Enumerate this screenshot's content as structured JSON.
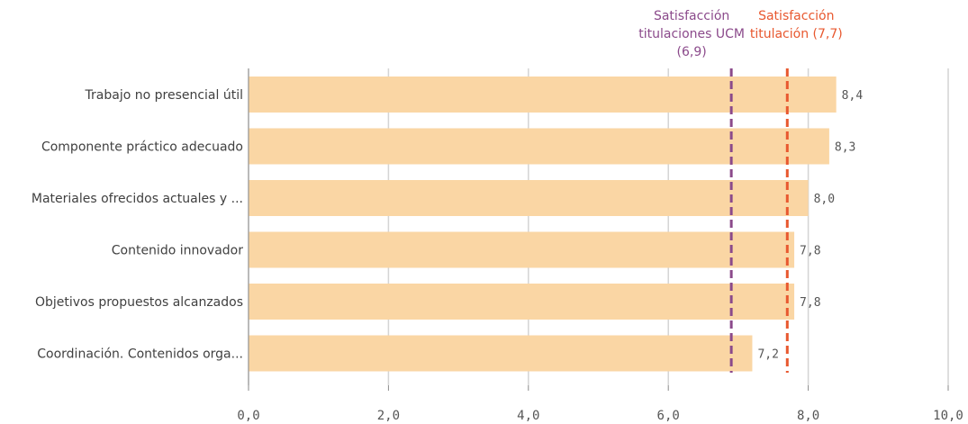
{
  "chart_data": {
    "type": "bar",
    "orientation": "horizontal",
    "categories": [
      "Trabajo no presencial útil",
      "Componente práctico adecuado",
      "Materiales ofrecidos actuales y ...",
      "Contenido innovador",
      "Objetivos propuestos alcanzados",
      "Coordinación. Contenidos orga..."
    ],
    "values": [
      8.4,
      8.3,
      8.0,
      7.8,
      7.8,
      7.2
    ],
    "value_labels": [
      "8,4",
      "8,3",
      "8,0",
      "7,8",
      "7,8",
      "7,2"
    ],
    "xlim": [
      0,
      10
    ],
    "x_ticks": [
      0,
      2,
      4,
      6,
      8,
      10
    ],
    "x_tick_labels": [
      "0,0",
      "2,0",
      "4,0",
      "6,0",
      "8,0",
      "10,0"
    ],
    "grid": true,
    "bar_color": "#fad6a4",
    "reference_lines": [
      {
        "value": 6.9,
        "label_lines": [
          "Satisfacción",
          "titulaciones UCM",
          "(6,9)"
        ],
        "color": "#8b4a8b",
        "style": "dashed"
      },
      {
        "value": 7.7,
        "label_lines": [
          "Satisfacción",
          "titulación (7,7)"
        ],
        "color": "#e8582f",
        "style": "dashed"
      }
    ]
  }
}
